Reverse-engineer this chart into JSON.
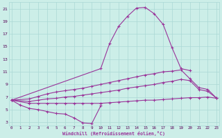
{
  "xlabel": "Windchill (Refroidissement éolien,°C)",
  "background_color": "#cceee8",
  "grid_color": "#aad8d4",
  "line_color": "#993399",
  "ylim": [
    2.5,
    22
  ],
  "yticks": [
    3,
    5,
    7,
    9,
    11,
    13,
    15,
    17,
    19,
    21
  ],
  "xlim": [
    0,
    23
  ],
  "figsize": [
    3.2,
    2.0
  ],
  "dpi": 100,
  "line_down_x": [
    0,
    1,
    2,
    3,
    4,
    5,
    6,
    7,
    8,
    9,
    10
  ],
  "line_down_y": [
    6.5,
    5.7,
    5.2,
    5.0,
    4.7,
    4.4,
    4.3,
    3.7,
    2.9,
    2.8,
    5.6
  ],
  "line_peak_x": [
    0,
    10,
    11,
    12,
    13,
    14,
    15,
    16,
    17,
    18,
    19,
    20
  ],
  "line_peak_y": [
    6.5,
    11.5,
    15.5,
    18.2,
    19.8,
    21.1,
    21.2,
    20.2,
    18.5,
    14.8,
    11.5,
    11.2
  ],
  "line_upper_x": [
    0,
    2,
    3,
    4,
    5,
    6,
    7,
    8,
    9,
    10,
    11,
    12,
    13,
    14,
    15,
    16,
    17,
    18,
    19,
    20,
    21,
    22,
    23
  ],
  "line_upper_y": [
    6.5,
    6.7,
    7.1,
    7.5,
    7.8,
    8.0,
    8.2,
    8.4,
    8.7,
    9.0,
    9.3,
    9.6,
    9.9,
    10.2,
    10.5,
    10.7,
    11.0,
    11.1,
    11.3,
    9.9,
    8.5,
    8.2,
    6.8
  ],
  "line_mid_x": [
    0,
    2,
    3,
    4,
    5,
    6,
    7,
    8,
    9,
    10,
    11,
    12,
    13,
    14,
    15,
    16,
    17,
    18,
    19,
    20,
    21,
    22,
    23
  ],
  "line_mid_y": [
    6.5,
    6.3,
    6.5,
    6.7,
    6.8,
    7.0,
    7.1,
    7.3,
    7.5,
    7.7,
    7.9,
    8.1,
    8.4,
    8.6,
    8.8,
    9.0,
    9.3,
    9.5,
    9.8,
    9.6,
    8.2,
    7.9,
    6.8
  ],
  "line_flat_x": [
    0,
    2,
    3,
    4,
    5,
    6,
    7,
    8,
    9,
    10,
    11,
    12,
    13,
    14,
    15,
    16,
    17,
    18,
    19,
    20,
    21,
    22,
    23
  ],
  "line_flat_y": [
    6.5,
    6.0,
    6.0,
    6.0,
    6.0,
    6.0,
    6.0,
    6.0,
    6.0,
    6.0,
    6.1,
    6.2,
    6.3,
    6.4,
    6.5,
    6.5,
    6.6,
    6.7,
    6.8,
    6.9,
    6.9,
    7.0,
    6.8
  ]
}
